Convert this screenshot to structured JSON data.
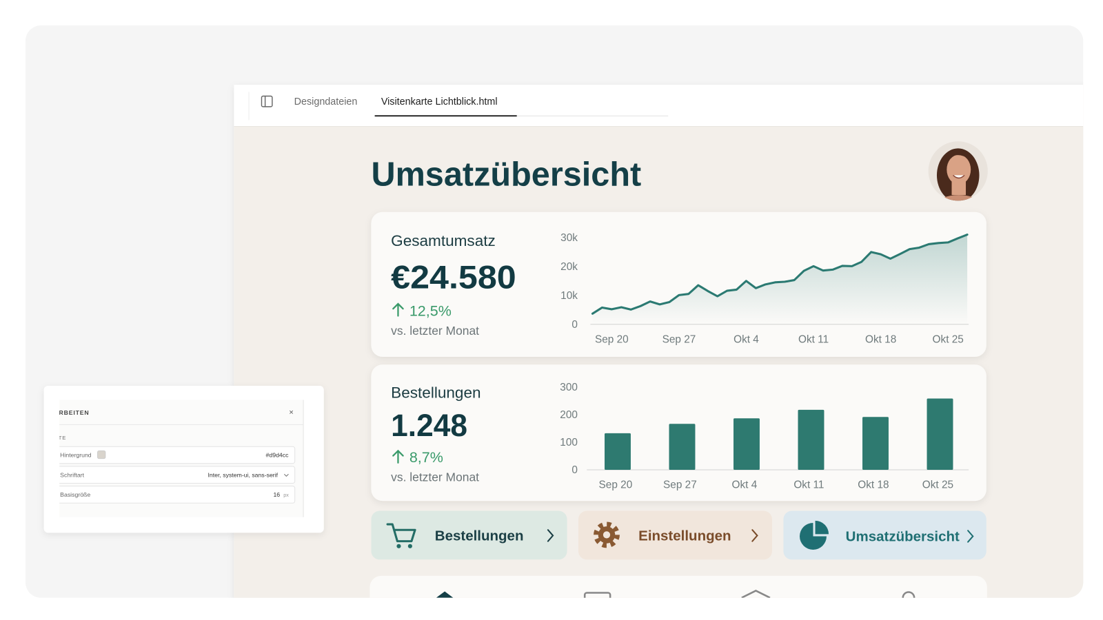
{
  "tabs": [
    "Designdateien",
    "Visitenkarte Lichtblick.html"
  ],
  "page_title": "Umsatzübersicht",
  "revenue_card": {
    "label": "Gesamtumsatz",
    "value": "€24.580",
    "change": "12,5%",
    "comparison": "vs. letzter Monat"
  },
  "orders_card": {
    "label": "Bestellungen",
    "value": "1.248",
    "change": "8,7%",
    "comparison": "vs. letzter Monat"
  },
  "chart_data": [
    {
      "type": "line",
      "color": "#2b7a72",
      "categories": [
        null,
        null,
        "Sep 20",
        null,
        null,
        null,
        null,
        null,
        null,
        "Sep 27",
        null,
        null,
        null,
        null,
        null,
        null,
        "Okt 4",
        null,
        null,
        null,
        null,
        null,
        null,
        "Okt 11",
        null,
        null,
        null,
        null,
        null,
        null,
        "Okt 18",
        null,
        null,
        null,
        null,
        null,
        null,
        "Okt 25",
        null,
        null
      ],
      "values": [
        3700,
        5800,
        5200,
        5900,
        5100,
        6300,
        7900,
        6900,
        7700,
        10100,
        10500,
        13500,
        11500,
        9700,
        11600,
        12000,
        15000,
        12500,
        13800,
        14500,
        14700,
        15300,
        18500,
        20100,
        18600,
        18900,
        20200,
        20100,
        21600,
        25000,
        24200,
        22700,
        24300,
        26000,
        26500,
        27700,
        28100,
        28300,
        29700,
        31000
      ],
      "ylim": [
        0,
        32000
      ],
      "yticks": [
        0,
        {
          "value": 10000,
          "label": "10k"
        },
        {
          "value": 20000,
          "label": "20k"
        },
        {
          "value": 30000,
          "label": "30k"
        }
      ]
    },
    {
      "type": "bar",
      "color": "#2e7a70",
      "categories": [
        "Sep 20",
        "Sep 27",
        "Okt 4",
        "Okt 11",
        "Okt 18",
        "Okt 25"
      ],
      "values": [
        133,
        167,
        187,
        218,
        192,
        259
      ],
      "ylim": [
        0,
        300
      ],
      "yticks": [
        0,
        100,
        200,
        300
      ]
    }
  ],
  "buttons": [
    "Bestellungen",
    "Einstellungen",
    "Umsatzübersicht"
  ],
  "panel": {
    "title": "EARBEITEN",
    "close": "×",
    "section": "EITE",
    "rows": [
      {
        "label": "Hintergrund",
        "value": "#d9d4cc"
      },
      {
        "label": "Schriftart",
        "value": "Inter, system-ui, sans-serif"
      },
      {
        "label": "Basisgröße",
        "value": "16",
        "unit": "px"
      }
    ]
  }
}
